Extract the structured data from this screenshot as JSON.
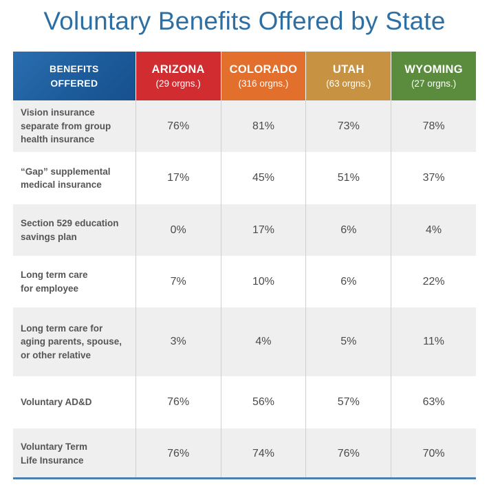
{
  "chart_data": {
    "type": "table",
    "title": "Voluntary Benefits Offered by State",
    "header_label": [
      "BENEFITS",
      "OFFERED"
    ],
    "states": [
      {
        "name": "ARIZONA",
        "sub": "(29 orgns.)",
        "color": "#d12c2f"
      },
      {
        "name": "COLORADO",
        "sub": "(316 orgns.)",
        "color": "#e36f2c"
      },
      {
        "name": "UTAH",
        "sub": "(63 orgns.)",
        "color": "#c79242"
      },
      {
        "name": "WYOMING",
        "sub": "(27 orgns.)",
        "color": "#5b8c3e"
      }
    ],
    "rows": [
      {
        "label": [
          "Vision insurance",
          "separate from group",
          "health insurance"
        ],
        "values": [
          "76%",
          "81%",
          "73%",
          "78%"
        ]
      },
      {
        "label": [
          "“Gap” supplemental",
          "medical insurance"
        ],
        "values": [
          "17%",
          "45%",
          "51%",
          "37%"
        ]
      },
      {
        "label": [
          "Section 529 education",
          "savings plan"
        ],
        "values": [
          "0%",
          "17%",
          "6%",
          "4%"
        ]
      },
      {
        "label": [
          "Long term care",
          "for employee"
        ],
        "values": [
          "7%",
          "10%",
          "6%",
          "22%"
        ]
      },
      {
        "label": [
          "Long term care for",
          "aging parents, spouse,",
          "or other relative"
        ],
        "values": [
          "3%",
          "4%",
          "5%",
          "11%"
        ]
      },
      {
        "label": [
          "Voluntary AD&D"
        ],
        "values": [
          "76%",
          "56%",
          "57%",
          "63%"
        ]
      },
      {
        "label": [
          "Voluntary Term",
          "Life Insurance"
        ],
        "values": [
          "76%",
          "74%",
          "76%",
          "70%"
        ]
      }
    ]
  }
}
